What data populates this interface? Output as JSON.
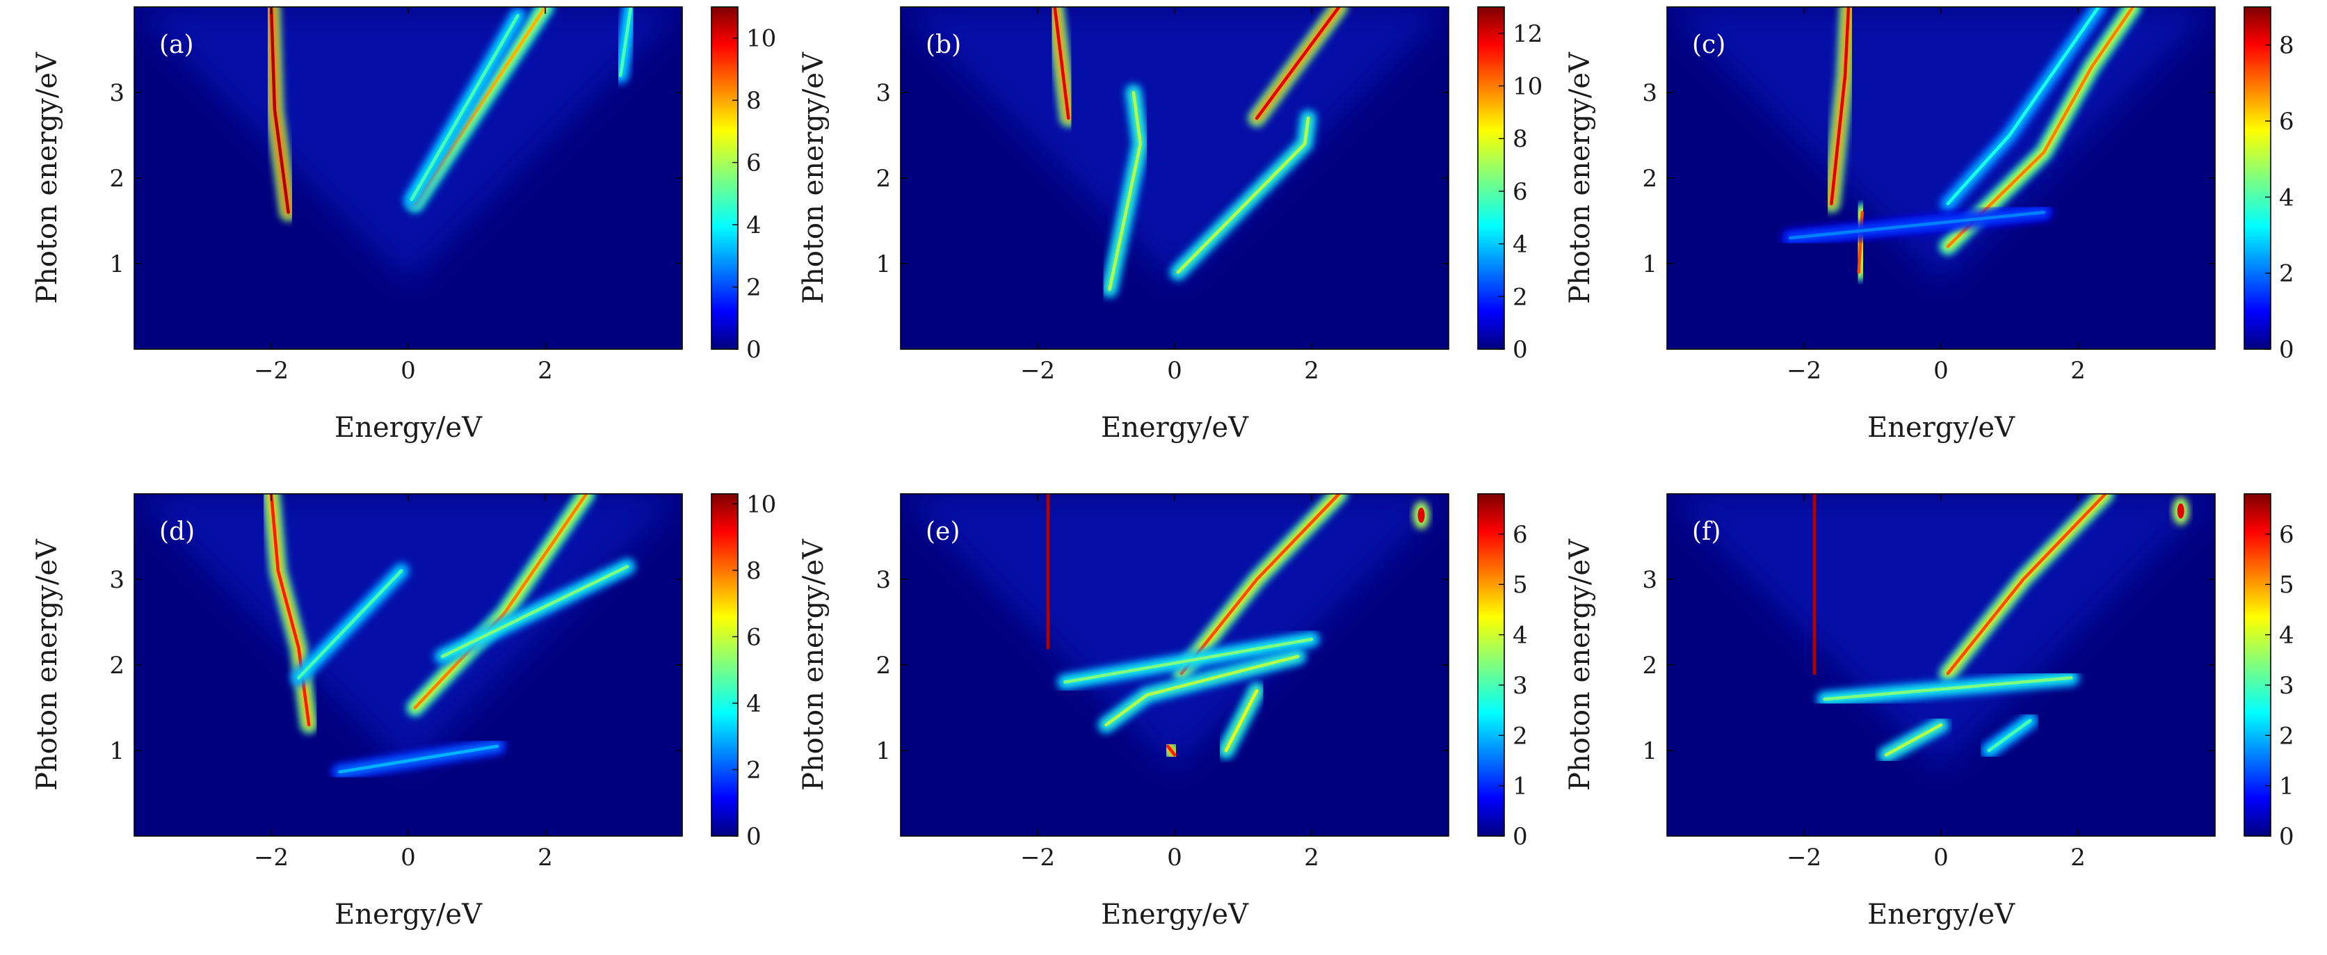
{
  "figure": {
    "panels": [
      {
        "label": "(a)",
        "cb_ticks": [
          "0",
          "2",
          "4",
          "6",
          "8",
          "10"
        ],
        "cb_max": 11
      },
      {
        "label": "(b)",
        "cb_ticks": [
          "0",
          "2",
          "4",
          "6",
          "8",
          "10",
          "12"
        ],
        "cb_max": 13
      },
      {
        "label": "(c)",
        "cb_ticks": [
          "0",
          "2",
          "4",
          "6",
          "8"
        ],
        "cb_max": 9
      },
      {
        "label": "(d)",
        "cb_ticks": [
          "0",
          "2",
          "4",
          "6",
          "8",
          "10"
        ],
        "cb_max": 10.3
      },
      {
        "label": "(e)",
        "cb_ticks": [
          "0",
          "1",
          "2",
          "3",
          "4",
          "5",
          "6"
        ],
        "cb_max": 6.8
      },
      {
        "label": "(f)",
        "cb_ticks": [
          "0",
          "1",
          "2",
          "3",
          "4",
          "5",
          "6"
        ],
        "cb_max": 6.8
      }
    ],
    "xlabel": "Energy/eV",
    "ylabel": "Photon energy/eV",
    "xticks": [
      "−2",
      "0",
      "2"
    ],
    "yticks": [
      "1",
      "2",
      "3"
    ],
    "colormap": "jet"
  },
  "chart_data": [
    {
      "type": "heatmap",
      "panel": "(a)",
      "xlabel": "Energy/eV",
      "ylabel": "Photon energy/eV",
      "xlim": [
        -4,
        4
      ],
      "ylim": [
        0,
        4
      ],
      "color_range": [
        0,
        11
      ],
      "colorbar_ticks": [
        0,
        2,
        4,
        6,
        8,
        10
      ],
      "features": [
        {
          "points": [
            [
              -1.75,
              1.6
            ],
            [
              -1.95,
              2.8
            ],
            [
              -2.0,
              4.0
            ]
          ],
          "intensity": 0.95
        },
        {
          "points": [
            [
              0.1,
              1.7
            ],
            [
              2.0,
              4.0
            ]
          ],
          "intensity": 0.7
        },
        {
          "points": [
            [
              0.05,
              1.75
            ],
            [
              1.6,
              3.9
            ]
          ],
          "intensity": 0.45
        },
        {
          "points": [
            [
              3.1,
              3.2
            ],
            [
              3.25,
              4.0
            ]
          ],
          "intensity": 0.45
        }
      ]
    },
    {
      "type": "heatmap",
      "panel": "(b)",
      "xlabel": "Energy/eV",
      "ylabel": "Photon energy/eV",
      "xlim": [
        -4,
        4
      ],
      "ylim": [
        0,
        4
      ],
      "color_range": [
        0,
        13
      ],
      "colorbar_ticks": [
        0,
        2,
        4,
        6,
        8,
        10,
        12
      ],
      "features": [
        {
          "points": [
            [
              -1.55,
              2.7
            ],
            [
              -1.75,
              4.0
            ]
          ],
          "intensity": 0.9
        },
        {
          "points": [
            [
              -0.95,
              0.7
            ],
            [
              -0.5,
              2.4
            ],
            [
              -0.6,
              3.0
            ]
          ],
          "intensity": 0.55
        },
        {
          "points": [
            [
              0.05,
              0.9
            ],
            [
              1.9,
              2.4
            ],
            [
              1.95,
              2.7
            ]
          ],
          "intensity": 0.55
        },
        {
          "points": [
            [
              1.2,
              2.7
            ],
            [
              2.4,
              4.0
            ]
          ],
          "intensity": 0.9
        }
      ]
    },
    {
      "type": "heatmap",
      "panel": "(c)",
      "xlabel": "Energy/eV",
      "ylabel": "Photon energy/eV",
      "xlim": [
        -4,
        4
      ],
      "ylim": [
        0,
        4
      ],
      "color_range": [
        0,
        9
      ],
      "colorbar_ticks": [
        0,
        2,
        4,
        6,
        8
      ],
      "features": [
        {
          "points": [
            [
              -1.6,
              1.7
            ],
            [
              -1.4,
              3.2
            ],
            [
              -1.35,
              4.0
            ]
          ],
          "intensity": 0.9
        },
        {
          "points": [
            [
              -1.2,
              0.9
            ],
            [
              -1.15,
              1.6
            ]
          ],
          "intensity": 0.8
        },
        {
          "points": [
            [
              0.1,
              1.2
            ],
            [
              1.5,
              2.3
            ],
            [
              2.2,
              3.3
            ],
            [
              2.8,
              4.0
            ]
          ],
          "intensity": 0.75
        },
        {
          "points": [
            [
              0.1,
              1.7
            ],
            [
              1.0,
              2.5
            ],
            [
              2.3,
              4.0
            ]
          ],
          "intensity": 0.4
        },
        {
          "points": [
            [
              -2.2,
              1.3
            ],
            [
              1.5,
              1.6
            ]
          ],
          "intensity": 0.25
        }
      ]
    },
    {
      "type": "heatmap",
      "panel": "(d)",
      "xlabel": "Energy/eV",
      "ylabel": "Photon energy/eV",
      "xlim": [
        -4,
        4
      ],
      "ylim": [
        0,
        4
      ],
      "color_range": [
        0,
        10.3
      ],
      "colorbar_ticks": [
        0,
        2,
        4,
        6,
        8,
        10
      ],
      "features": [
        {
          "points": [
            [
              -1.45,
              1.3
            ],
            [
              -1.6,
              2.2
            ],
            [
              -1.9,
              3.1
            ],
            [
              -2.0,
              4.0
            ]
          ],
          "intensity": 0.85
        },
        {
          "points": [
            [
              -1.6,
              1.85
            ],
            [
              -0.1,
              3.1
            ]
          ],
          "intensity": 0.45
        },
        {
          "points": [
            [
              0.1,
              1.5
            ],
            [
              1.4,
              2.6
            ],
            [
              2.6,
              4.0
            ]
          ],
          "intensity": 0.75
        },
        {
          "points": [
            [
              0.5,
              2.1
            ],
            [
              3.2,
              3.15
            ]
          ],
          "intensity": 0.5
        },
        {
          "points": [
            [
              -1.0,
              0.75
            ],
            [
              1.3,
              1.05
            ]
          ],
          "intensity": 0.3
        }
      ]
    },
    {
      "type": "heatmap",
      "panel": "(e)",
      "xlabel": "Energy/eV",
      "ylabel": "Photon energy/eV",
      "xlim": [
        -4,
        4
      ],
      "ylim": [
        0,
        4
      ],
      "color_range": [
        0,
        6.8
      ],
      "colorbar_ticks": [
        0,
        1,
        2,
        3,
        4,
        5,
        6
      ],
      "features": [
        {
          "points": [
            [
              -1.85,
              2.2
            ],
            [
              -1.85,
              3.2
            ],
            [
              -1.85,
              4.0
            ]
          ],
          "intensity": 0.95
        },
        {
          "points": [
            [
              0.1,
              1.9
            ],
            [
              1.2,
              3.0
            ],
            [
              2.4,
              4.0
            ]
          ],
          "intensity": 0.8
        },
        {
          "points": [
            [
              -1.6,
              1.8
            ],
            [
              2.0,
              2.3
            ]
          ],
          "intensity": 0.5
        },
        {
          "points": [
            [
              -1.0,
              1.3
            ],
            [
              -0.4,
              1.65
            ],
            [
              1.8,
              2.1
            ]
          ],
          "intensity": 0.55
        },
        {
          "points": [
            [
              -0.1,
              1.05
            ],
            [
              0.0,
              0.95
            ]
          ],
          "intensity": 0.85
        },
        {
          "points": [
            [
              0.75,
              1.0
            ],
            [
              1.2,
              1.7
            ]
          ],
          "intensity": 0.6
        },
        {
          "points": [
            [
              3.6,
              3.75
            ]
          ],
          "intensity": 0.9
        }
      ]
    },
    {
      "type": "heatmap",
      "panel": "(f)",
      "xlabel": "Energy/eV",
      "ylabel": "Photon energy/eV",
      "xlim": [
        -4,
        4
      ],
      "ylim": [
        0,
        4
      ],
      "color_range": [
        0,
        6.8
      ],
      "colorbar_ticks": [
        0,
        1,
        2,
        3,
        4,
        5,
        6
      ],
      "features": [
        {
          "points": [
            [
              -1.85,
              1.9
            ],
            [
              -1.85,
              3.3
            ],
            [
              -1.85,
              4.0
            ]
          ],
          "intensity": 0.95
        },
        {
          "points": [
            [
              0.1,
              1.9
            ],
            [
              1.2,
              3.0
            ],
            [
              2.4,
              4.0
            ]
          ],
          "intensity": 0.8
        },
        {
          "points": [
            [
              -1.7,
              1.6
            ],
            [
              1.9,
              1.85
            ]
          ],
          "intensity": 0.5
        },
        {
          "points": [
            [
              -0.8,
              0.95
            ],
            [
              0.0,
              1.3
            ]
          ],
          "intensity": 0.55
        },
        {
          "points": [
            [
              0.7,
              1.0
            ],
            [
              1.3,
              1.35
            ]
          ],
          "intensity": 0.45
        },
        {
          "points": [
            [
              3.5,
              3.8
            ]
          ],
          "intensity": 0.9
        }
      ]
    }
  ]
}
